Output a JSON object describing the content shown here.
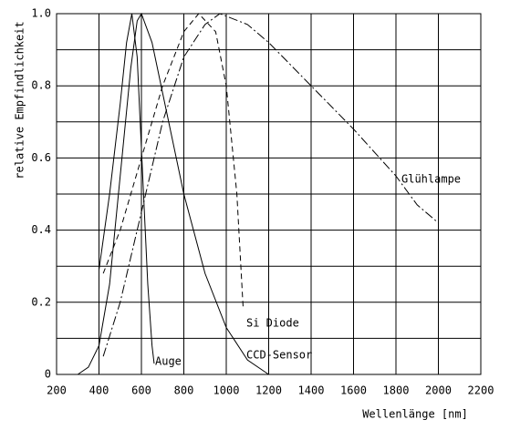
{
  "chart_data": {
    "type": "line",
    "xlabel": "Wellenlänge [nm]",
    "ylabel": "relative Empfindlichkeit",
    "xlim": [
      200,
      2200
    ],
    "ylim": [
      0,
      1
    ],
    "xticks": [
      200,
      400,
      600,
      800,
      1000,
      1200,
      1400,
      1600,
      1800,
      2000,
      2200
    ],
    "yticks": [
      0,
      0.2,
      0.4,
      0.6,
      0.8,
      {
        "value": 1,
        "label": "1.0"
      }
    ],
    "yminor": [
      0.1,
      0.3,
      0.5,
      0.7,
      0.9
    ],
    "grid": true,
    "series": [
      {
        "name": "Auge",
        "color": "#000000",
        "style": "solid",
        "x": [
          400,
          450,
          500,
          530,
          555,
          580,
          610,
          630,
          650,
          660
        ],
        "values": [
          0.29,
          0.5,
          0.75,
          0.92,
          1.0,
          0.88,
          0.5,
          0.25,
          0.08,
          0.03
        ]
      },
      {
        "name": "Si Diode",
        "color": "#000000",
        "style": "dashed",
        "x": [
          420,
          500,
          600,
          700,
          800,
          870,
          950,
          1000,
          1050,
          1080
        ],
        "values": [
          0.28,
          0.4,
          0.6,
          0.8,
          0.95,
          1.0,
          0.95,
          0.8,
          0.5,
          0.18
        ]
      },
      {
        "name": "CCD-Sensor",
        "color": "#000000",
        "style": "solid",
        "x": [
          300,
          350,
          400,
          450,
          500,
          550,
          580,
          600,
          650,
          700,
          800,
          900,
          1000,
          1100,
          1200
        ],
        "values": [
          0,
          0.02,
          0.08,
          0.25,
          0.55,
          0.85,
          0.98,
          1.0,
          0.92,
          0.78,
          0.5,
          0.28,
          0.13,
          0.04,
          0
        ]
      },
      {
        "name": "Glühlampe",
        "color": "#000000",
        "style": "dashdot",
        "x": [
          420,
          500,
          600,
          700,
          800,
          900,
          970,
          1100,
          1200,
          1400,
          1600,
          1800,
          1900,
          2000
        ],
        "values": [
          0.05,
          0.2,
          0.45,
          0.7,
          0.88,
          0.97,
          1.0,
          0.97,
          0.92,
          0.8,
          0.68,
          0.55,
          0.47,
          0.42
        ]
      }
    ]
  }
}
